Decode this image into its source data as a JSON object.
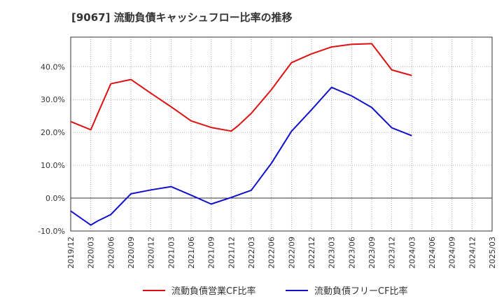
{
  "chart_data": {
    "type": "line",
    "title": "[9067]  流動負債キャッシュフロー比率の推移",
    "xlabel": "",
    "ylabel": "",
    "ylim": [
      -10,
      49
    ],
    "yticks": [
      -10,
      0,
      10,
      20,
      30,
      40
    ],
    "ytick_labels": [
      "-10.0%",
      "0.0%",
      "10.0%",
      "20.0%",
      "30.0%",
      "40.0%"
    ],
    "x_ticks": [
      "2019/12",
      "2020/03",
      "2020/06",
      "2020/09",
      "2020/12",
      "2021/03",
      "2021/06",
      "2021/09",
      "2021/12",
      "2022/03",
      "2022/06",
      "2022/09",
      "2022/12",
      "2023/03",
      "2023/06",
      "2023/09",
      "2023/12",
      "2024/03",
      "2024/06",
      "2024/09",
      "2024/12",
      "2025/03"
    ],
    "grid": true,
    "legend_position": "bottom",
    "series": [
      {
        "name": "流動負債営業CF比率",
        "color": "#dd1111",
        "x": [
          "2019/12",
          "2020/03",
          "2020/04",
          "2020/06",
          "2020/09",
          "2020/12",
          "2021/03",
          "2021/06",
          "2021/09",
          "2021/12",
          "2022/01",
          "2022/03",
          "2022/06",
          "2022/09",
          "2022/12",
          "2023/03",
          "2023/06",
          "2023/09",
          "2023/12",
          "2024/03"
        ],
        "values": [
          23.3,
          20.8,
          25.5,
          34.8,
          36.1,
          31.9,
          27.8,
          23.5,
          21.5,
          20.4,
          22.0,
          25.8,
          33.0,
          41.2,
          43.9,
          46.0,
          46.8,
          47.0,
          39.0,
          37.3
        ]
      },
      {
        "name": "流動負債フリーCF比率",
        "color": "#1111cc",
        "x": [
          "2019/12",
          "2020/03",
          "2020/04",
          "2020/06",
          "2020/09",
          "2020/12",
          "2021/03",
          "2021/06",
          "2021/09",
          "2021/12",
          "2022/03",
          "2022/06",
          "2022/09",
          "2022/12",
          "2023/03",
          "2023/06",
          "2023/09",
          "2023/12",
          "2024/03"
        ],
        "values": [
          -3.9,
          -8.2,
          -7.0,
          -5.0,
          1.3,
          2.5,
          3.5,
          0.9,
          -1.8,
          0.2,
          2.4,
          10.6,
          20.3,
          26.9,
          33.7,
          31.1,
          27.6,
          21.4,
          19.0
        ]
      }
    ]
  }
}
